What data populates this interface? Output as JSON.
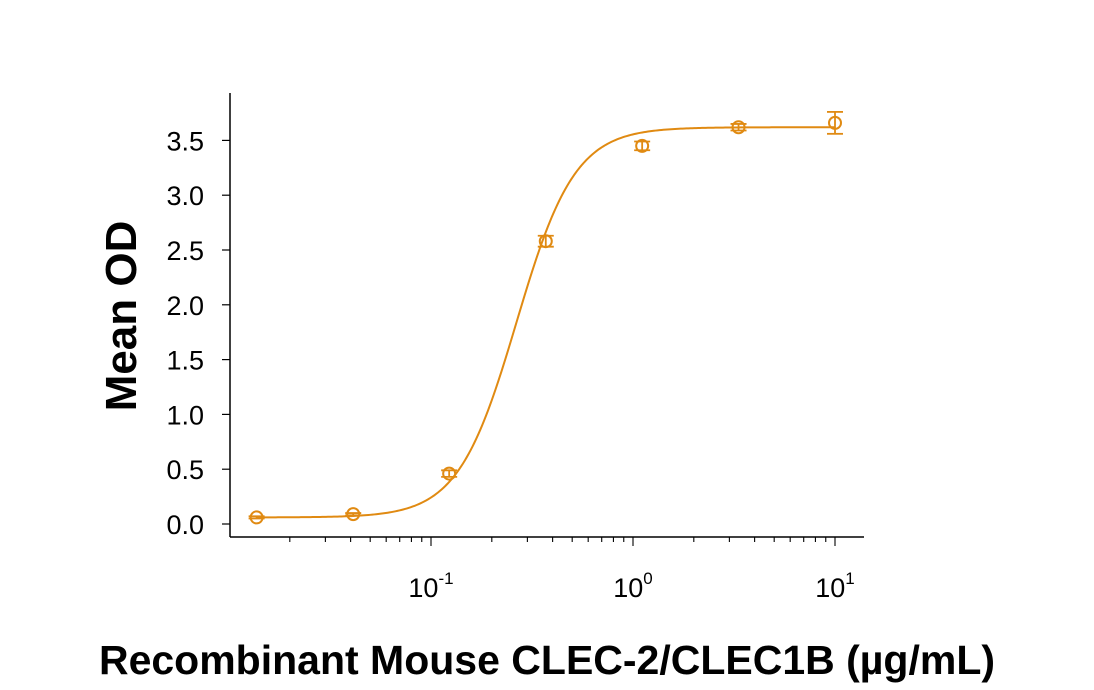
{
  "chart_data": {
    "type": "scatter",
    "title": "",
    "xlabel": "Recombinant Mouse CLEC-2/CLEC1B (µg/mL)",
    "ylabel": "Mean OD",
    "x_scale": "log",
    "xlim": [
      0.0123,
      14
    ],
    "ylim": [
      0,
      3.9
    ],
    "x_ticks": [
      {
        "base": "10",
        "exp": "-1",
        "value": 0.1
      },
      {
        "base": "10",
        "exp": "0",
        "value": 1
      },
      {
        "base": "10",
        "exp": "1",
        "value": 10
      }
    ],
    "y_ticks": [
      {
        "label": "0.0",
        "value": 0.0
      },
      {
        "label": "0.5",
        "value": 0.5
      },
      {
        "label": "1.0",
        "value": 1.0
      },
      {
        "label": "1.5",
        "value": 1.5
      },
      {
        "label": "2.0",
        "value": 2.0
      },
      {
        "label": "2.5",
        "value": 2.5
      },
      {
        "label": "3.0",
        "value": 3.0
      },
      {
        "label": "3.5",
        "value": 3.5
      }
    ],
    "series": [
      {
        "color": "#E08A12",
        "points": [
          {
            "x": 0.0137,
            "y": 0.06,
            "err": 0.01
          },
          {
            "x": 0.0412,
            "y": 0.09,
            "err": 0.01
          },
          {
            "x": 0.123,
            "y": 0.46,
            "err": 0.03
          },
          {
            "x": 0.37,
            "y": 2.58,
            "err": 0.05
          },
          {
            "x": 1.11,
            "y": 3.45,
            "err": 0.04
          },
          {
            "x": 3.33,
            "y": 3.62,
            "err": 0.03
          },
          {
            "x": 10.0,
            "y": 3.66,
            "err": 0.1
          }
        ],
        "fit": {
          "model": "4PL",
          "bottom": 0.06,
          "top": 3.62,
          "ec50": 0.265,
          "hill": 3.0
        }
      }
    ],
    "grid": false,
    "legend": "none"
  }
}
